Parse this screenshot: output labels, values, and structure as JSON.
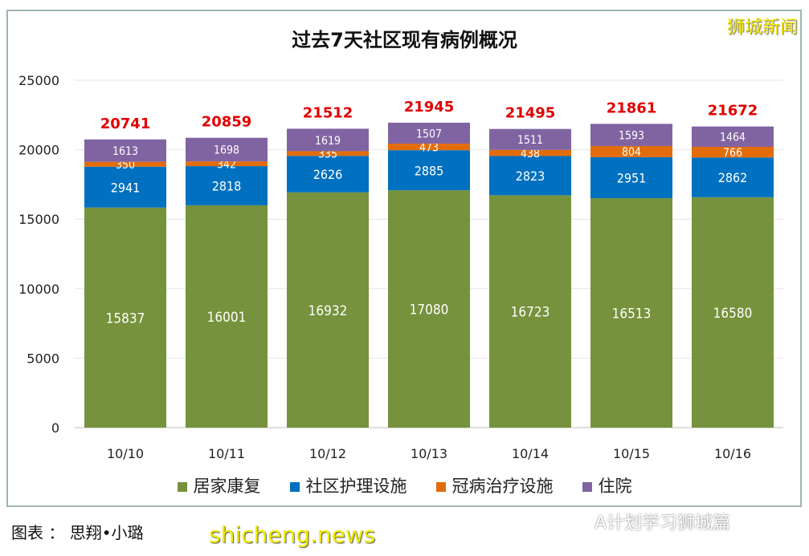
{
  "chart_data": {
    "type": "bar",
    "stacked": true,
    "title": "过去7天社区现有病例概况",
    "categories": [
      "10/10",
      "10/11",
      "10/12",
      "10/13",
      "10/14",
      "10/15",
      "10/16"
    ],
    "series": [
      {
        "name": "居家康复",
        "color": "#76923c",
        "values": [
          15837,
          16001,
          16932,
          17080,
          16723,
          16513,
          16580
        ]
      },
      {
        "name": "社区护理设施",
        "color": "#0070c0",
        "values": [
          2941,
          2818,
          2626,
          2885,
          2823,
          2951,
          2862
        ]
      },
      {
        "name": "冠病治疗设施",
        "color": "#e36c0a",
        "values": [
          350,
          342,
          335,
          473,
          438,
          804,
          766
        ]
      },
      {
        "name": "住院",
        "color": "#8064a2",
        "values": [
          1613,
          1698,
          1619,
          1507,
          1511,
          1593,
          1464
        ]
      }
    ],
    "totals": [
      20741,
      20859,
      21512,
      21945,
      21495,
      21861,
      21672
    ],
    "total_color": "#e00000",
    "ylim": [
      0,
      25000
    ],
    "yticks": [
      0,
      5000,
      10000,
      15000,
      20000,
      25000
    ],
    "grid": true,
    "legend": "bottom"
  },
  "brand": "狮城新闻",
  "credit": "图表 ： 思翔•小璐",
  "watermark_site": "shicheng.news",
  "watermark_account": "A计划学习狮城篇"
}
